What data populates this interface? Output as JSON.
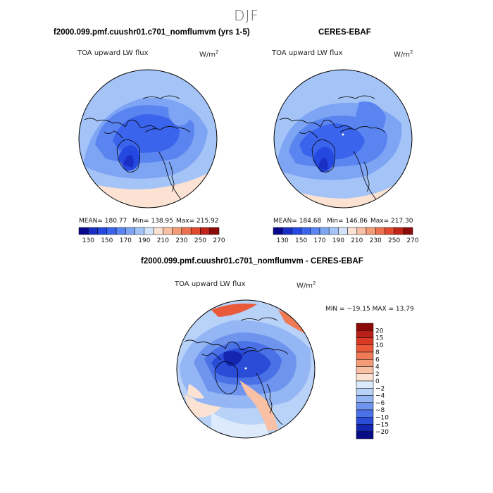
{
  "figure": {
    "season": "DJF",
    "panel1": {
      "title": "f2000.099.pmf.cuushr01.c701_nomflumvm (yrs 1-5)",
      "variable": "TOA upward LW flux",
      "units": "W/m",
      "units_exp": "2",
      "mean": "MEAN= 180.77",
      "min": "Min= 138.95",
      "max": "Max= 215.92"
    },
    "panel2": {
      "title": "CERES-EBAF",
      "variable": "TOA upward LW flux",
      "units": "W/m",
      "units_exp": "2",
      "mean": "MEAN= 184.68",
      "min": "Min= 146.86",
      "max": "Max= 217.30"
    },
    "panel3": {
      "title": "f2000.099.pmf.cuushr01.c701_nomflumvm - CERES-EBAF",
      "variable": "TOA upward LW flux",
      "units": "W/m",
      "units_exp": "2",
      "minmax": "MIN = −19.15 MAX =  13.79"
    }
  },
  "chart_data": [
    {
      "type": "heatmap",
      "projection": "north-polar-stereographic",
      "title": "f2000.099.pmf.cuushr01.c701_nomflumvm (yrs 1-5)",
      "variable": "TOA upward LW flux",
      "units": "W/m2",
      "stats": {
        "mean": 180.77,
        "min": 138.95,
        "max": 215.92
      },
      "colorbar": {
        "levels": [
          130,
          140,
          150,
          160,
          170,
          180,
          190,
          200,
          210,
          220,
          230,
          240,
          250,
          260,
          270
        ],
        "tick_labels": [
          "130",
          "150",
          "170",
          "190",
          "210",
          "230",
          "250",
          "270"
        ],
        "colors": [
          "#08088c",
          "#1a2ec4",
          "#2448e0",
          "#3a64ec",
          "#5a84f0",
          "#7ea4f4",
          "#a4c4f8",
          "#d2e4fb",
          "#fbe2d2",
          "#f8c0a4",
          "#f49c78",
          "#ec7350",
          "#e04a2e",
          "#c0241a",
          "#8c0a08"
        ]
      }
    },
    {
      "type": "heatmap",
      "projection": "north-polar-stereographic",
      "title": "CERES-EBAF",
      "variable": "TOA upward LW flux",
      "units": "W/m2",
      "stats": {
        "mean": 184.68,
        "min": 146.86,
        "max": 217.3
      },
      "colorbar": {
        "levels": [
          130,
          140,
          150,
          160,
          170,
          180,
          190,
          200,
          210,
          220,
          230,
          240,
          250,
          260,
          270
        ],
        "tick_labels": [
          "130",
          "150",
          "170",
          "190",
          "210",
          "230",
          "250",
          "270"
        ],
        "colors": [
          "#08088c",
          "#1a2ec4",
          "#2448e0",
          "#3a64ec",
          "#5a84f0",
          "#7ea4f4",
          "#a4c4f8",
          "#d2e4fb",
          "#fbe2d2",
          "#f8c0a4",
          "#f49c78",
          "#ec7350",
          "#e04a2e",
          "#c0241a",
          "#8c0a08"
        ]
      }
    },
    {
      "type": "heatmap",
      "projection": "north-polar-stereographic",
      "title": "f2000.099.pmf.cuushr01.c701_nomflumvm - CERES-EBAF",
      "variable": "TOA upward LW flux",
      "units": "W/m2",
      "stats": {
        "min": -19.15,
        "max": 13.79
      },
      "colorbar": {
        "orientation": "vertical",
        "tick_labels": [
          "20",
          "15",
          "10",
          "8",
          "6",
          "4",
          "2",
          "0",
          "−2",
          "−4",
          "−6",
          "−8",
          "−10",
          "−15",
          "−20"
        ],
        "colors": [
          "#8c0a08",
          "#b8201a",
          "#d83a26",
          "#e85a3a",
          "#f07a56",
          "#f49c78",
          "#f8c0a4",
          "#fbe2d2",
          "#dceafb",
          "#b8d2f8",
          "#94b6f4",
          "#6e94ee",
          "#4a72e6",
          "#2a4cd6",
          "#1426b0",
          "#080c84"
        ]
      }
    }
  ]
}
